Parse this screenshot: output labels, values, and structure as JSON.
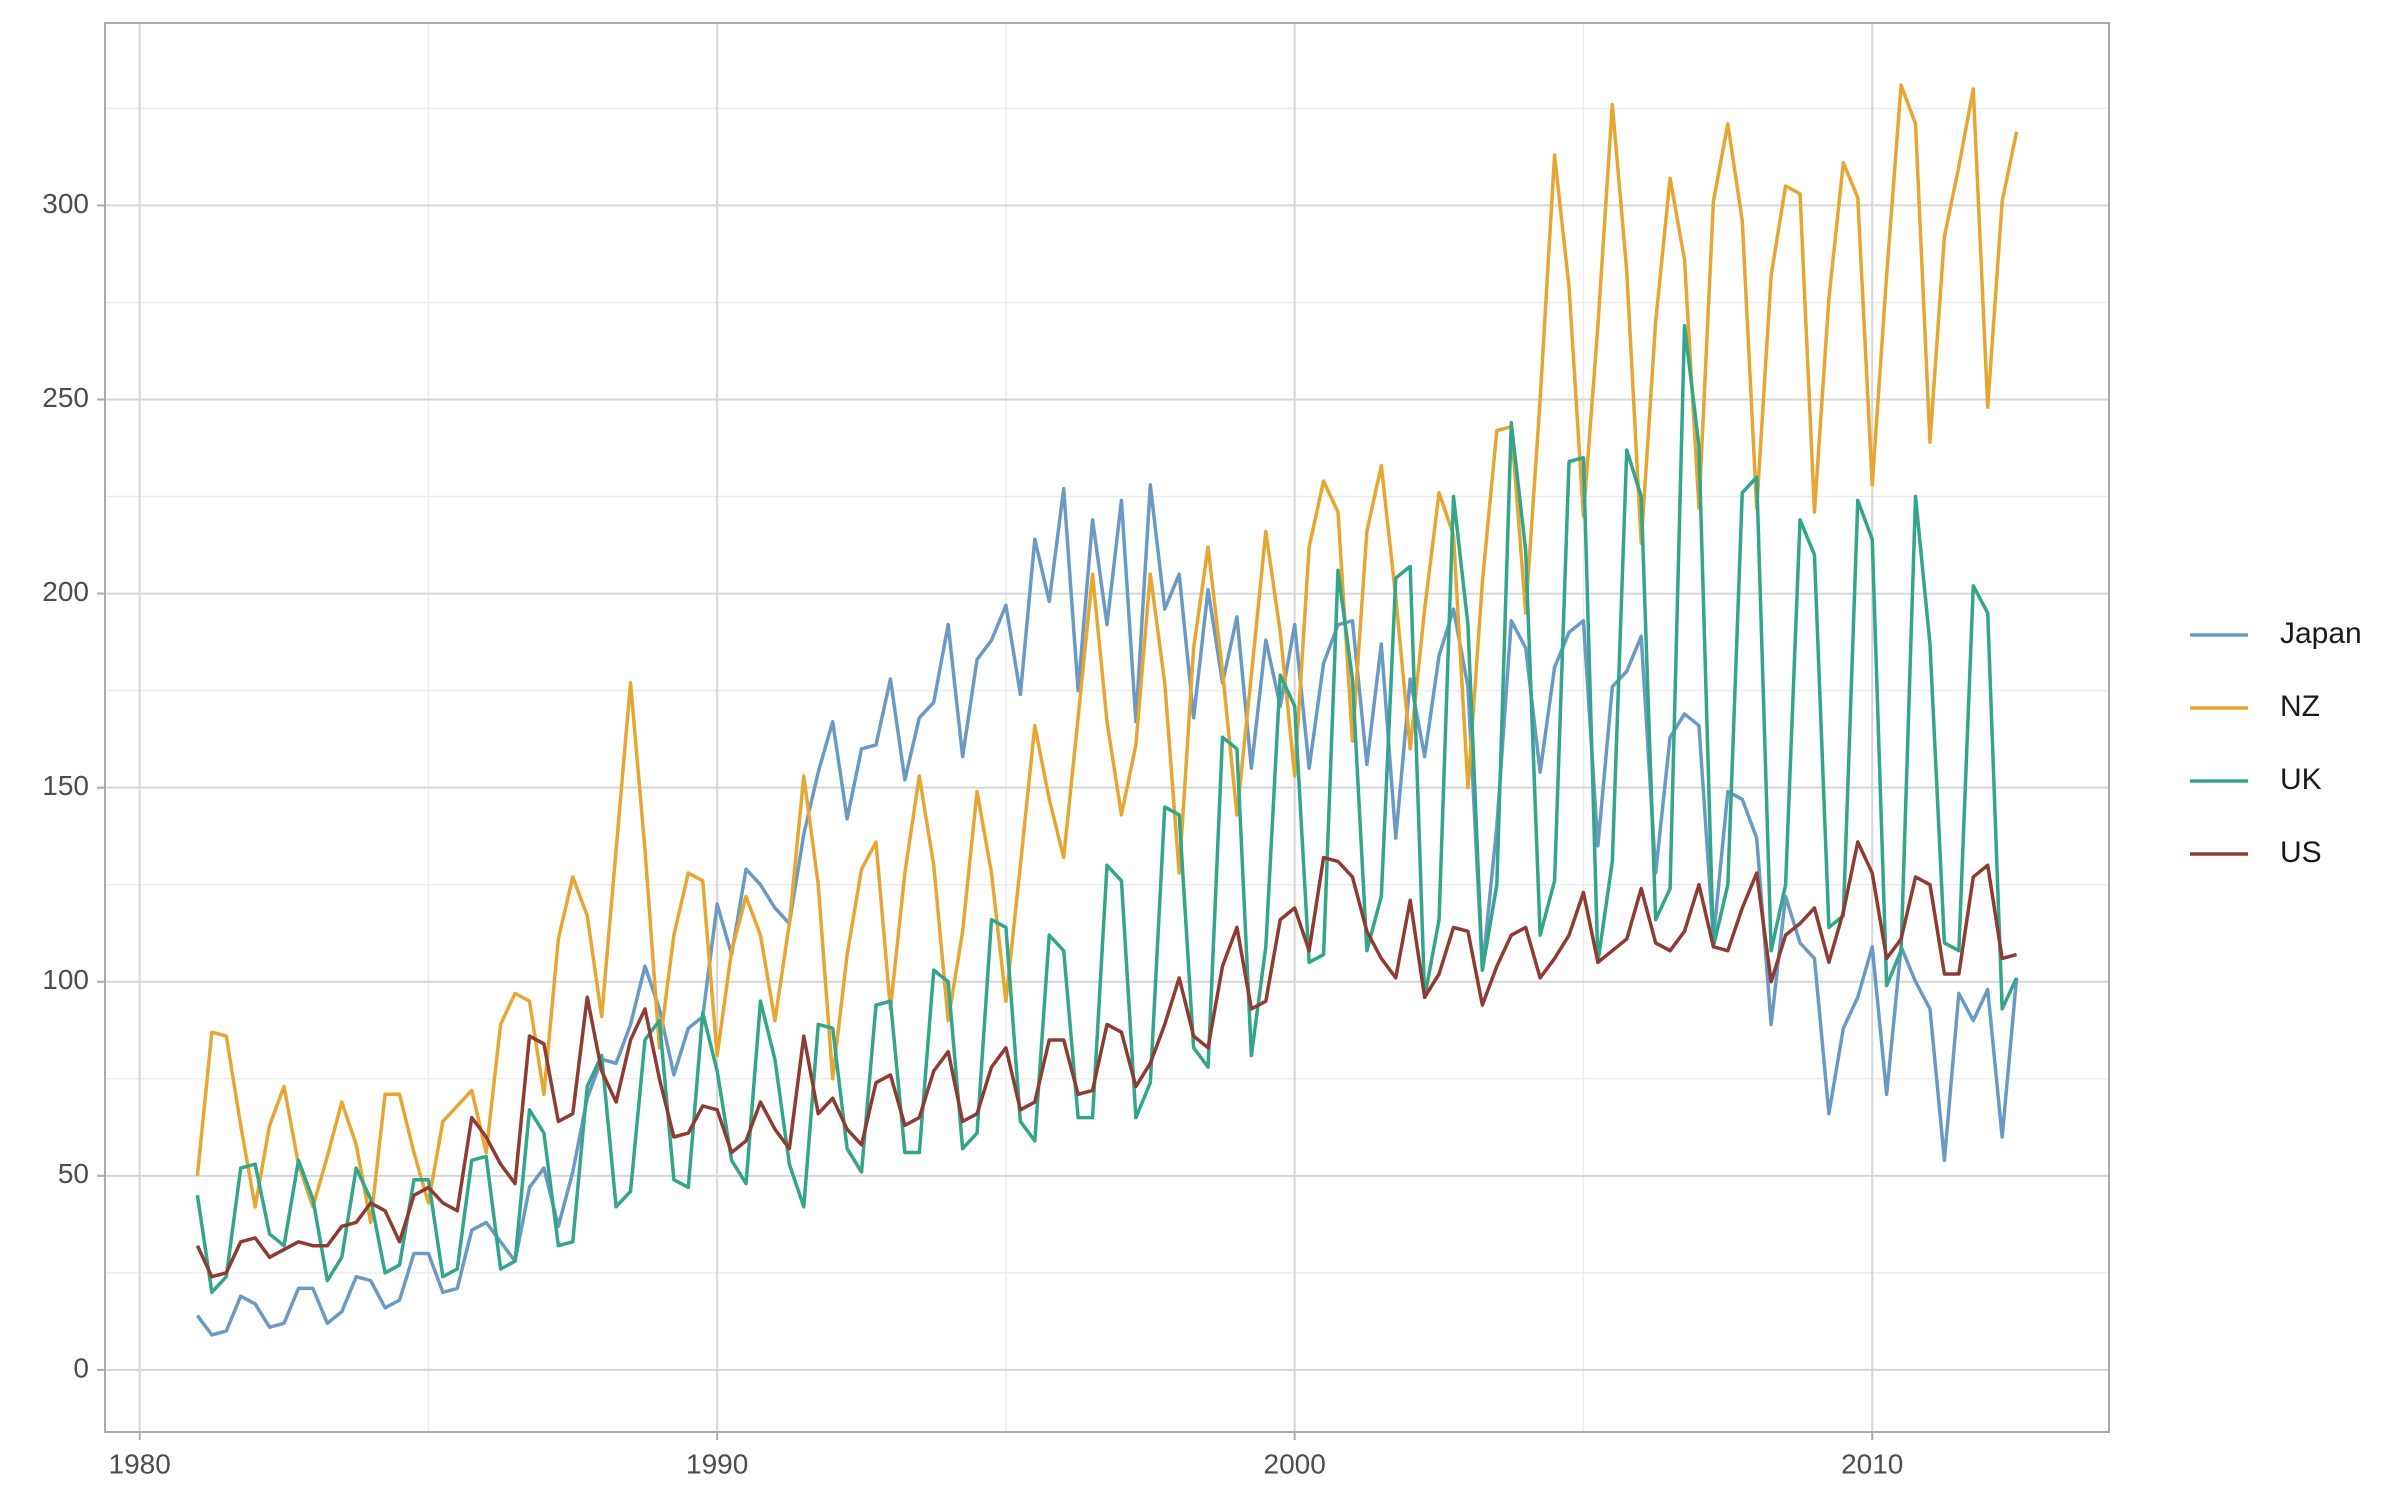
{
  "chart_data": {
    "type": "line",
    "x": [
      1981,
      1981.25,
      1981.5,
      1981.75,
      1982,
      1982.25,
      1982.5,
      1982.75,
      1983,
      1983.25,
      1983.5,
      1983.75,
      1984,
      1984.25,
      1984.5,
      1984.75,
      1985,
      1985.25,
      1985.5,
      1985.75,
      1986,
      1986.25,
      1986.5,
      1986.75,
      1987,
      1987.25,
      1987.5,
      1987.75,
      1988,
      1988.25,
      1988.5,
      1988.75,
      1989,
      1989.25,
      1989.5,
      1989.75,
      1990,
      1990.25,
      1990.5,
      1990.75,
      1991,
      1991.25,
      1991.5,
      1991.75,
      1992,
      1992.25,
      1992.5,
      1992.75,
      1993,
      1993.25,
      1993.5,
      1993.75,
      1994,
      1994.25,
      1994.5,
      1994.75,
      1995,
      1995.25,
      1995.5,
      1995.75,
      1996,
      1996.25,
      1996.5,
      1996.75,
      1997,
      1997.25,
      1997.5,
      1997.75,
      1998,
      1998.25,
      1998.5,
      1998.75,
      1999,
      1999.25,
      1999.5,
      1999.75,
      2000,
      2000.25,
      2000.5,
      2000.75,
      2001,
      2001.25,
      2001.5,
      2001.75,
      2002,
      2002.25,
      2002.5,
      2002.75,
      2003,
      2003.25,
      2003.5,
      2003.75,
      2004,
      2004.25,
      2004.5,
      2004.75,
      2005,
      2005.25,
      2005.5,
      2005.75,
      2006,
      2006.25,
      2006.5,
      2006.75,
      2007,
      2007.25,
      2007.5,
      2007.75,
      2008,
      2008.25,
      2008.5,
      2008.75,
      2009,
      2009.25,
      2009.5,
      2009.75,
      2010,
      2010.25,
      2010.5,
      2010.75,
      2011,
      2011.25,
      2011.5,
      2011.75,
      2012,
      2012.25,
      2012.5
    ],
    "series": [
      {
        "name": "Japan",
        "color": "#6a9ac4",
        "values": [
          14,
          9,
          10,
          19,
          17,
          11,
          12,
          21,
          21,
          12,
          15,
          24,
          23,
          16,
          18,
          30,
          30,
          20,
          21,
          36,
          38,
          33,
          28,
          47,
          52,
          37,
          51,
          70,
          80,
          79,
          89,
          104,
          93,
          76,
          88,
          91,
          120,
          107,
          129,
          125,
          119,
          115,
          138,
          154,
          167,
          142,
          160,
          161,
          178,
          152,
          168,
          172,
          192,
          158,
          183,
          188,
          197,
          174,
          214,
          198,
          227,
          175,
          219,
          192,
          224,
          167,
          228,
          196,
          205,
          168,
          201,
          177,
          194,
          155,
          188,
          171,
          192,
          155,
          182,
          192,
          193,
          156,
          187,
          137,
          178,
          158,
          184,
          196,
          176,
          103,
          140,
          193,
          186,
          154,
          181,
          190,
          193,
          135,
          176,
          180,
          189,
          128,
          163,
          169,
          166,
          111,
          149,
          147,
          137,
          89,
          122,
          110,
          106,
          66,
          88,
          96,
          109,
          71,
          109,
          100,
          93,
          54,
          97,
          90,
          98,
          60,
          101
        ]
      },
      {
        "name": "NZ",
        "color": "#e6a632",
        "values": [
          50,
          87,
          86,
          63,
          42,
          63,
          73,
          53,
          42,
          55,
          69,
          58,
          38,
          71,
          71,
          56,
          43,
          64,
          68,
          72,
          56,
          89,
          97,
          95,
          71,
          111,
          127,
          117,
          91,
          134,
          177,
          134,
          83,
          112,
          128,
          126,
          81,
          108,
          122,
          112,
          90,
          115,
          153,
          125,
          75,
          107,
          129,
          136,
          93,
          128,
          153,
          130,
          90,
          113,
          149,
          128,
          95,
          130,
          166,
          147,
          132,
          168,
          205,
          167,
          143,
          161,
          205,
          177,
          128,
          186,
          212,
          180,
          143,
          179,
          216,
          190,
          153,
          212,
          229,
          221,
          162,
          216,
          233,
          199,
          160,
          196,
          226,
          215,
          150,
          203,
          242,
          243,
          195,
          250,
          313,
          279,
          220,
          269,
          326,
          283,
          213,
          270,
          307,
          286,
          222,
          301,
          321,
          296,
          222,
          282,
          305,
          303,
          221,
          276,
          311,
          302,
          228,
          282,
          331,
          321,
          239,
          292,
          310,
          330,
          248,
          301,
          319
        ]
      },
      {
        "name": "UK",
        "color": "#33a58a",
        "values": [
          45,
          20,
          24,
          52,
          53,
          35,
          32,
          54,
          44,
          23,
          29,
          52,
          44,
          25,
          27,
          49,
          49,
          24,
          26,
          54,
          55,
          26,
          28,
          67,
          61,
          32,
          33,
          73,
          81,
          42,
          46,
          85,
          90,
          49,
          47,
          92,
          77,
          54,
          48,
          95,
          80,
          53,
          42,
          89,
          88,
          57,
          51,
          94,
          95,
          56,
          56,
          103,
          100,
          57,
          61,
          116,
          114,
          64,
          59,
          112,
          108,
          65,
          65,
          130,
          126,
          65,
          74,
          145,
          143,
          83,
          78,
          163,
          160,
          81,
          109,
          179,
          171,
          105,
          107,
          206,
          178,
          108,
          122,
          204,
          207,
          96,
          116,
          225,
          192,
          103,
          125,
          244,
          211,
          112,
          126,
          234,
          235,
          105,
          131,
          237,
          225,
          116,
          124,
          269,
          238,
          109,
          125,
          226,
          230,
          108,
          125,
          219,
          210,
          114,
          117,
          224,
          214,
          99,
          108,
          225,
          187,
          110,
          108,
          202,
          195,
          93,
          101
        ]
      },
      {
        "name": "US",
        "color": "#8e3b34",
        "values": [
          32,
          24,
          25,
          33,
          34,
          29,
          31,
          33,
          32,
          32,
          37,
          38,
          43,
          41,
          33,
          45,
          47,
          43,
          41,
          65,
          60,
          53,
          48,
          86,
          84,
          64,
          66,
          96,
          77,
          69,
          85,
          93,
          75,
          60,
          61,
          68,
          67,
          56,
          59,
          69,
          62,
          57,
          86,
          66,
          70,
          62,
          58,
          74,
          76,
          63,
          65,
          77,
          82,
          64,
          66,
          78,
          83,
          67,
          69,
          85,
          85,
          71,
          72,
          89,
          87,
          73,
          79,
          89,
          101,
          86,
          83,
          104,
          114,
          93,
          95,
          116,
          119,
          108,
          132,
          131,
          127,
          113,
          106,
          101,
          121,
          96,
          102,
          114,
          113,
          94,
          104,
          112,
          114,
          101,
          106,
          112,
          123,
          105,
          108,
          111,
          124,
          110,
          108,
          113,
          125,
          109,
          108,
          119,
          128,
          100,
          112,
          115,
          119,
          105,
          118,
          136,
          128,
          106,
          111,
          127,
          125,
          102,
          102,
          127,
          130,
          106,
          107
        ]
      }
    ],
    "xlim": [
      1979.4,
      2014.1
    ],
    "xticks": [
      1980,
      1990,
      2000,
      2010
    ],
    "xminor_ticks": [
      1985,
      1995,
      2005
    ],
    "ylim": [
      -16,
      347
    ],
    "yticks": [
      0,
      50,
      100,
      150,
      200,
      250,
      300
    ],
    "yminor_ticks": [
      25,
      75,
      125,
      175,
      225,
      275,
      325
    ],
    "grid": true,
    "legend": "right"
  }
}
